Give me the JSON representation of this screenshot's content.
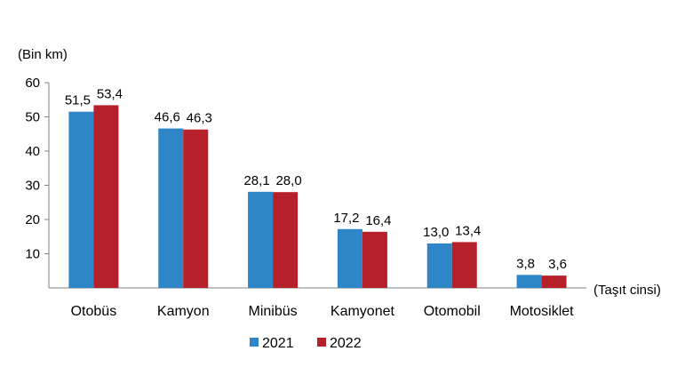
{
  "chart_data": {
    "type": "bar",
    "ylabel": "(Bin km)",
    "xlabel": "(Taşıt cinsi)",
    "categories": [
      "Otobüs",
      "Kamyon",
      "Minibüs",
      "Kamyonet",
      "Otomobil",
      "Motosiklet"
    ],
    "series": [
      {
        "name": "2021",
        "color": "#2e86c8",
        "values": [
          51.5,
          46.6,
          28.1,
          17.2,
          13.0,
          3.8
        ],
        "labels": [
          "51,5",
          "46,6",
          "28,1",
          "17,2",
          "13,0",
          "3,8"
        ]
      },
      {
        "name": "2022",
        "color": "#b5202a",
        "values": [
          53.4,
          46.3,
          28.0,
          16.4,
          13.4,
          3.6
        ],
        "labels": [
          "53,4",
          "46,3",
          "28,0",
          "16,4",
          "13,4",
          "3,6"
        ]
      }
    ],
    "ylim": [
      0,
      60
    ],
    "yticks": [
      "10",
      "20",
      "30",
      "40",
      "50",
      "60"
    ],
    "grid": false,
    "legend_position": "bottom"
  }
}
